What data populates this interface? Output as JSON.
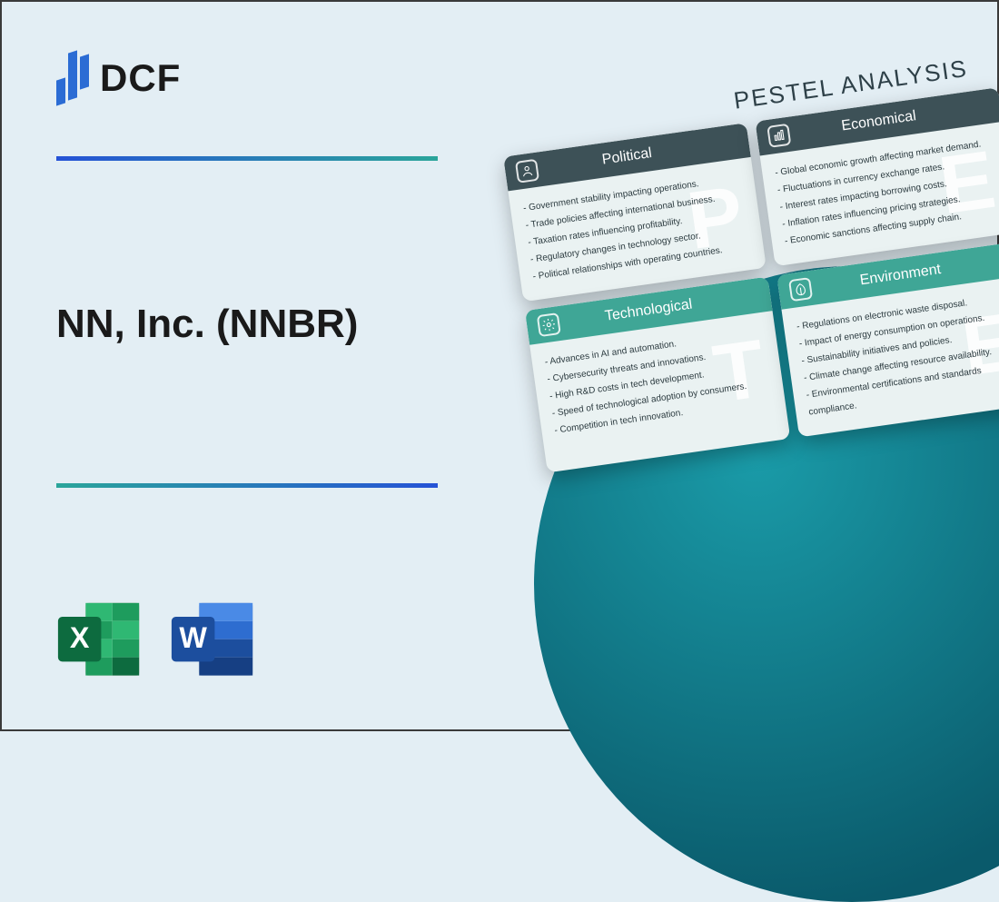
{
  "logo": {
    "text": "DCF"
  },
  "title": "NN, Inc. (NNBR)",
  "colors": {
    "background": "#e3eef4",
    "logo_blue": "#2b6cd4",
    "divider_gradient_start": "#2552d6",
    "divider_gradient_end": "#2aa59a",
    "teal_circle_light": "#1a9ba8",
    "teal_circle_dark": "#0a5a6b",
    "card_dark_header": "#3d5157",
    "card_teal_header": "#3fa696",
    "card_body_bg": "#eaf2f2",
    "excel_dark": "#0d6b3f",
    "excel_mid": "#1e9c5d",
    "excel_light": "#2fb873",
    "word_dark": "#1c4e9e",
    "word_mid": "#2e6dd0",
    "word_light": "#4a8ae6"
  },
  "pestel": {
    "heading": "PESTEL ANALYSIS",
    "cards": [
      {
        "key": "political",
        "title": "Political",
        "style": "dark",
        "watermark": "P",
        "icon": "person",
        "items": [
          "Government stability impacting operations.",
          "Trade policies affecting international business.",
          "Taxation rates influencing profitability.",
          "Regulatory changes in technology sector.",
          "Political relationships with operating countries."
        ]
      },
      {
        "key": "economical",
        "title": "Economical",
        "style": "dark",
        "watermark": "E",
        "icon": "chart",
        "items": [
          "Global economic growth affecting market demand.",
          "Fluctuations in currency exchange rates.",
          "Interest rates impacting borrowing costs.",
          "Inflation rates influencing pricing strategies.",
          "Economic sanctions affecting supply chain."
        ]
      },
      {
        "key": "technological",
        "title": "Technological",
        "style": "teal",
        "watermark": "T",
        "icon": "gear",
        "items": [
          "Advances in AI and automation.",
          "Cybersecurity threats and innovations.",
          "High R&D costs in tech development.",
          "Speed of technological adoption by consumers.",
          "Competition in tech innovation."
        ]
      },
      {
        "key": "environment",
        "title": "Environment",
        "style": "teal",
        "watermark": "E",
        "icon": "leaf",
        "items": [
          "Regulations on electronic waste disposal.",
          "Impact of energy consumption on operations.",
          "Sustainability initiatives and policies.",
          "Climate change affecting resource availability.",
          "Environmental certifications and standards compliance."
        ]
      }
    ]
  },
  "app_icons": {
    "excel": {
      "letter": "X"
    },
    "word": {
      "letter": "W"
    }
  }
}
